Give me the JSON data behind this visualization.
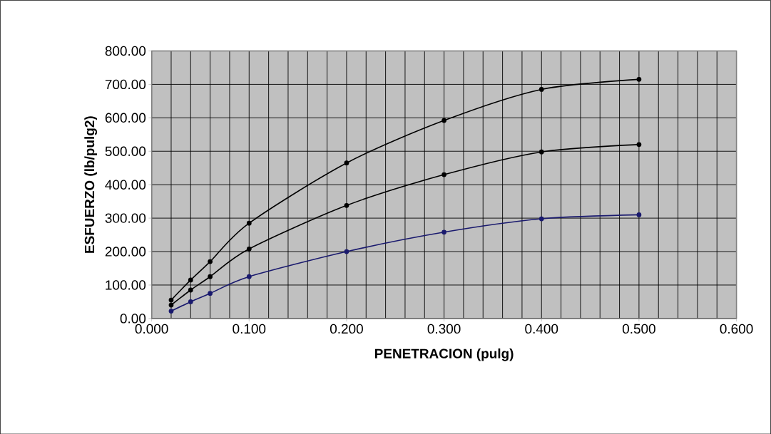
{
  "chart_data": {
    "type": "line",
    "xlabel": "PENETRACION (pulg)",
    "ylabel": "ESFUERZO (lb/pulg2)",
    "x": [
      0.02,
      0.04,
      0.06,
      0.1,
      0.2,
      0.3,
      0.4,
      0.5
    ],
    "series": [
      {
        "color": "#000000",
        "values": [
          55,
          115,
          170,
          285,
          465,
          592,
          685,
          715
        ]
      },
      {
        "color": "#000000",
        "values": [
          40,
          85,
          125,
          208,
          338,
          430,
          498,
          520
        ]
      },
      {
        "color": "#1a1a6e",
        "values": [
          22,
          50,
          75,
          125,
          200,
          258,
          298,
          310
        ]
      }
    ],
    "xlim": [
      0,
      0.6
    ],
    "ylim": [
      0,
      800
    ],
    "xticks": [
      {
        "value": 0,
        "label": "0.000"
      },
      {
        "value": 0.1,
        "label": "0.100"
      },
      {
        "value": 0.2,
        "label": "0.200"
      },
      {
        "value": 0.3,
        "label": "0.300"
      },
      {
        "value": 0.4,
        "label": "0.400"
      },
      {
        "value": 0.5,
        "label": "0.500"
      },
      {
        "value": 0.6,
        "label": "0.600"
      }
    ],
    "yticks": [
      {
        "value": 0,
        "label": "0.00"
      },
      {
        "value": 100,
        "label": "100.00"
      },
      {
        "value": 200,
        "label": "200.00"
      },
      {
        "value": 300,
        "label": "300.00"
      },
      {
        "value": 400,
        "label": "400.00"
      },
      {
        "value": 500,
        "label": "500.00"
      },
      {
        "value": 600,
        "label": "600.00"
      },
      {
        "value": 700,
        "label": "700.00"
      },
      {
        "value": 800,
        "label": "800.00"
      }
    ],
    "grid": true,
    "marker": "circle",
    "line_style": "solid"
  }
}
